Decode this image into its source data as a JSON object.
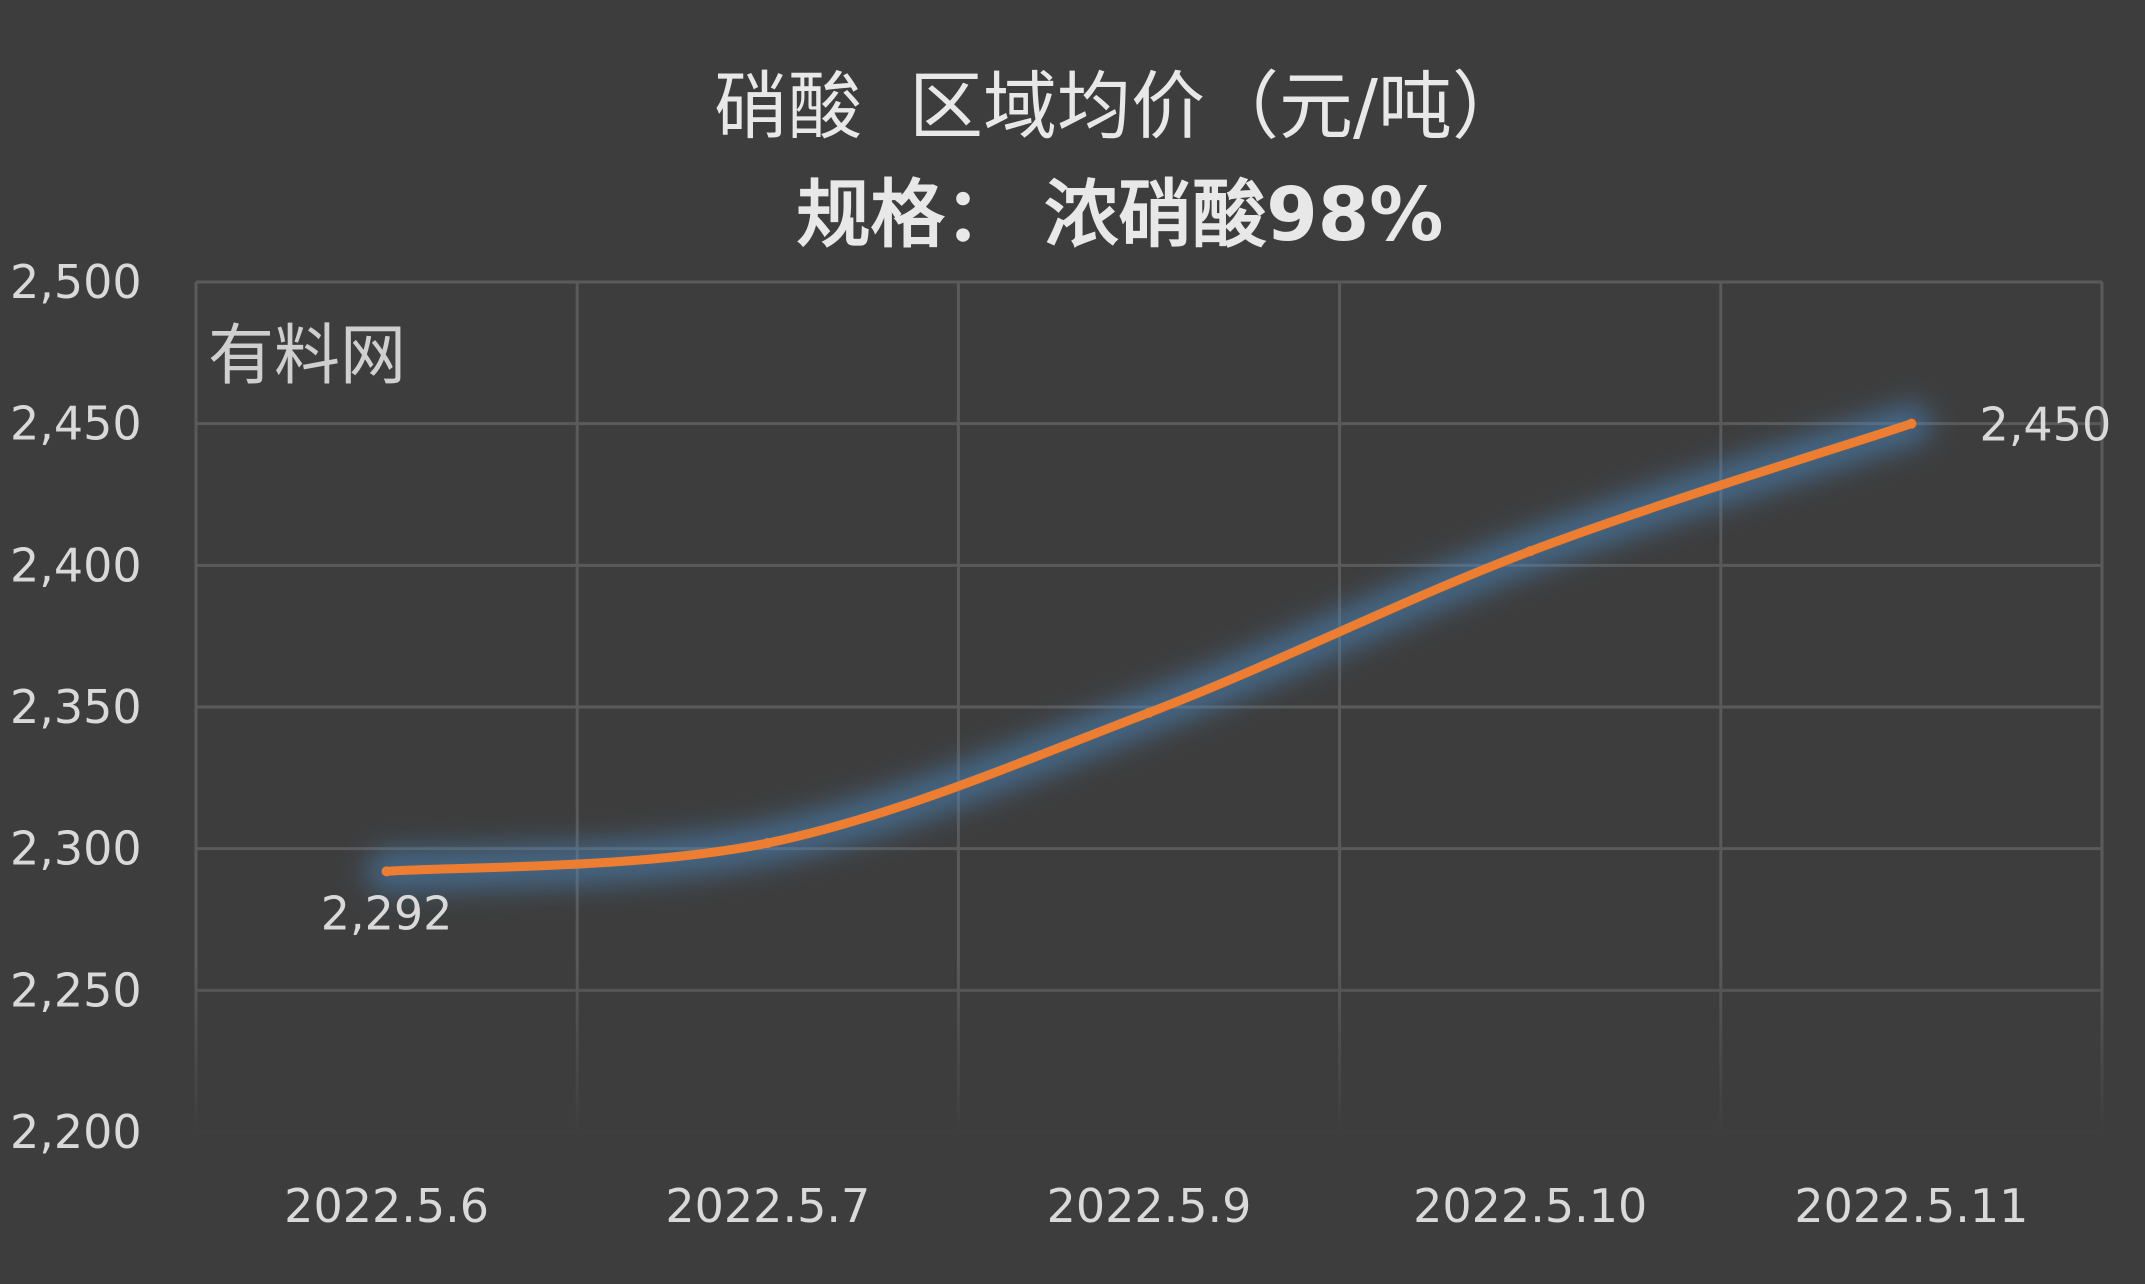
{
  "chart_data": {
    "type": "line",
    "title": "硝酸  区域均价（元/吨）",
    "subtitle": "规格： 浓硝酸98%",
    "watermark": "有料网",
    "categories": [
      "2022.5.6",
      "2022.5.7",
      "2022.5.9",
      "2022.5.10",
      "2022.5.11"
    ],
    "series": [
      {
        "values": [
          2292,
          2302,
          2348,
          2405,
          2450
        ]
      }
    ],
    "data_labels": [
      {
        "index": 0,
        "text": "2,292"
      },
      {
        "index": 4,
        "text": "2,450"
      }
    ],
    "ylim": [
      2200,
      2500
    ],
    "yticks": [
      "2,200",
      "2,250",
      "2,300",
      "2,350",
      "2,400",
      "2,450",
      "2,500"
    ],
    "xlabel": "",
    "ylabel": "",
    "grid": true,
    "smooth": true,
    "colors": {
      "background": "#3d3d3d",
      "grid": "#5a5a5a",
      "line": "#ed7d31",
      "glow": "#4a8cc8",
      "text": "#d9d9d9",
      "title": "#e8e8e8"
    }
  }
}
